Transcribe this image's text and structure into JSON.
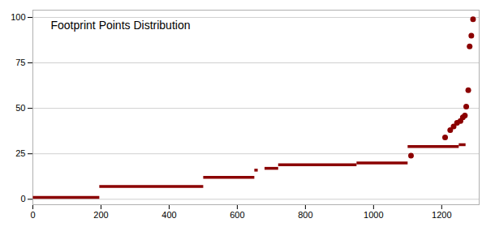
{
  "chart_data": {
    "type": "segments",
    "title": "Footprint Points Distribution",
    "color": "#8B0000",
    "xlim": [
      0,
      1310
    ],
    "ylim": [
      -3,
      104
    ],
    "xticks": [
      0,
      200,
      400,
      600,
      800,
      1000,
      1200
    ],
    "yticks": [
      0,
      25,
      50,
      75,
      100
    ],
    "grid": true,
    "segments": [
      {
        "x": [
          0,
          195
        ],
        "y": [
          1,
          1
        ]
      },
      {
        "x": [
          195,
          500
        ],
        "y": [
          7,
          7
        ]
      },
      {
        "x": [
          500,
          650
        ],
        "y": [
          12,
          12
        ]
      },
      {
        "x": [
          650,
          660
        ],
        "y": [
          16,
          16
        ]
      },
      {
        "x": [
          680,
          720
        ],
        "y": [
          17,
          17
        ]
      },
      {
        "x": [
          720,
          950
        ],
        "y": [
          19,
          19
        ]
      },
      {
        "x": [
          950,
          1100
        ],
        "y": [
          20,
          20
        ]
      },
      {
        "x": [
          1100,
          1250
        ],
        "y": [
          29,
          29
        ]
      },
      {
        "x": [
          1250,
          1270
        ],
        "y": [
          30,
          30
        ]
      }
    ],
    "points": {
      "x": [
        1110,
        1210,
        1225,
        1235,
        1245,
        1255,
        1262,
        1268,
        1272,
        1278,
        1282,
        1287,
        1292
      ],
      "y": [
        24,
        34,
        38,
        40,
        42,
        43,
        45,
        46,
        51,
        60,
        84,
        90,
        99
      ]
    }
  }
}
